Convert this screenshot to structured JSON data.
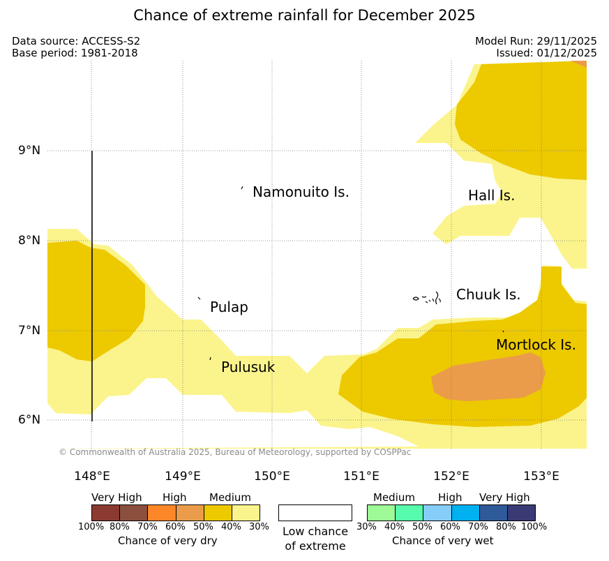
{
  "title": "Chance of extreme rainfall for December 2025",
  "data_source": "Data source: ACCESS-S2",
  "base_period": "Base period: 1981-2018",
  "model_run": "Model Run: 29/11/2025",
  "issued": "Issued: 01/12/2025",
  "copyright": "© Commonwealth of Australia 2025, Bureau of Meteorology, supported by COSPPac",
  "map": {
    "lon_ticks": [
      "148°E",
      "149°E",
      "150°E",
      "151°E",
      "152°E",
      "153°E"
    ],
    "lat_ticks": [
      "9°N",
      "8°N",
      "7°N",
      "6°N"
    ],
    "places": [
      "Namonuito Is.",
      "Hall Is.",
      "Pulap",
      "Chuuk Is.",
      "Mortlock Is.",
      "Pulusuk"
    ]
  },
  "legend": {
    "dry": {
      "categories": [
        "Very High",
        "High",
        "Medium"
      ],
      "ticks": [
        "100%",
        "80%",
        "70%",
        "60%",
        "50%",
        "40%",
        "30%"
      ],
      "label": "Chance of very dry",
      "colors": [
        "#8b3a32",
        "#8b4f3d",
        "#fd8728",
        "#eb9c4a",
        "#edc900",
        "#fbf48c"
      ]
    },
    "neutral": {
      "label_line1": "Low chance",
      "label_line2": "of extreme",
      "color": "#ffffff"
    },
    "wet": {
      "categories": [
        "Medium",
        "High",
        "Very High"
      ],
      "ticks": [
        "30%",
        "40%",
        "50%",
        "60%",
        "70%",
        "80%",
        "100%"
      ],
      "label": "Chance of very wet",
      "colors": [
        "#9efa96",
        "#57fbac",
        "#87cdf9",
        "#00b0ef",
        "#2f5a9a",
        "#3a3a74"
      ]
    }
  }
}
